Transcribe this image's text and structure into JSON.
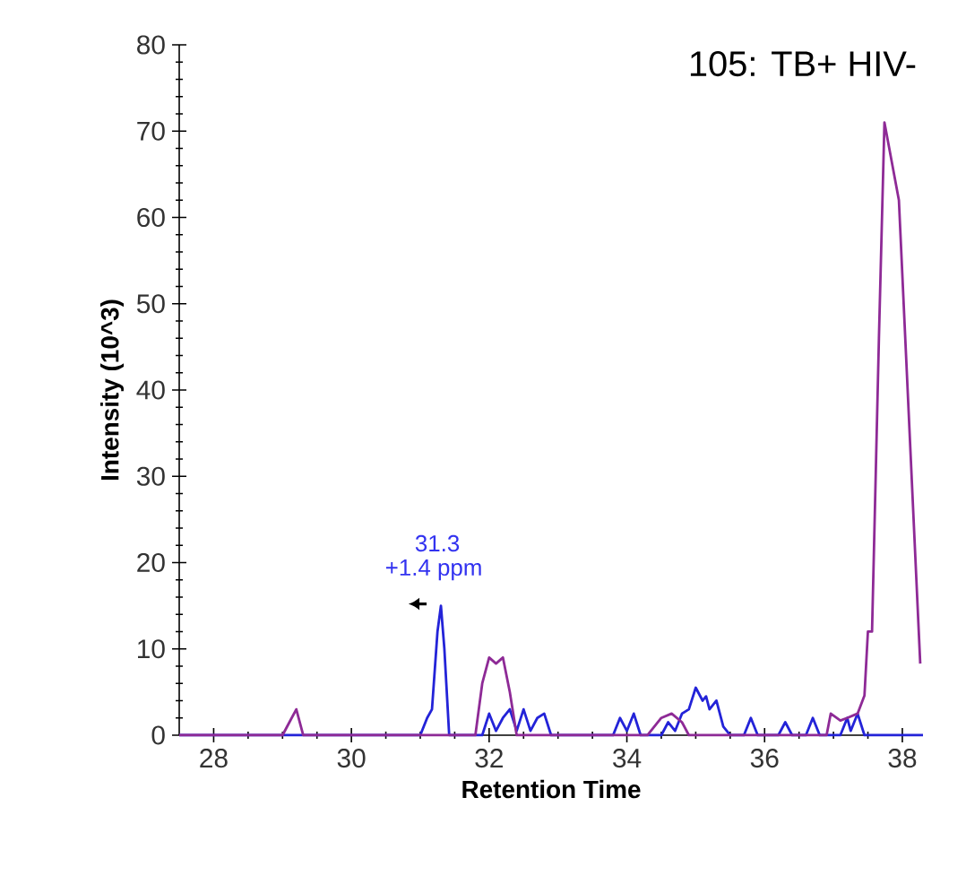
{
  "chart_data": {
    "type": "line",
    "title": "105: TB+ HIV-",
    "xlabel": "Retention Time",
    "ylabel": "Intensity (10^3)",
    "xlim": [
      27.5,
      38.3
    ],
    "ylim": [
      0,
      80
    ],
    "xticks": [
      28,
      30,
      32,
      34,
      36,
      38
    ],
    "yticks": [
      0,
      10,
      20,
      30,
      40,
      50,
      60,
      70,
      80
    ],
    "grid": false,
    "marker": "none",
    "line_style": "solid",
    "annotations": [
      {
        "text": "31.3",
        "x": 31.3,
        "y": 15
      },
      {
        "text": "+1.4 ppm",
        "x": 31.3,
        "y": 15
      }
    ],
    "series": [
      {
        "color": "#2323d8",
        "x": [
          27.5,
          31.0,
          31.1,
          31.17,
          31.25,
          31.3,
          31.35,
          31.42,
          31.9,
          32.0,
          32.1,
          32.2,
          32.3,
          32.4,
          32.5,
          32.6,
          32.7,
          32.8,
          32.9,
          33.8,
          33.9,
          34.0,
          34.1,
          34.2,
          34.5,
          34.6,
          34.7,
          34.8,
          34.9,
          35.0,
          35.1,
          35.15,
          35.2,
          35.3,
          35.4,
          35.5,
          35.7,
          35.8,
          35.9,
          36.2,
          36.3,
          36.4,
          36.6,
          36.7,
          36.8,
          37.1,
          37.2,
          37.25,
          37.35,
          37.45,
          38.3
        ],
        "values": [
          0,
          0,
          2,
          3,
          12,
          15,
          10,
          0,
          0,
          2.5,
          0.5,
          2,
          3,
          0.5,
          3,
          0.5,
          2,
          2.5,
          0,
          0,
          2,
          0.5,
          2.5,
          0,
          0,
          1.5,
          0.5,
          2.5,
          3,
          5.5,
          4,
          4.5,
          3,
          4,
          1,
          0,
          0,
          2,
          0,
          0,
          1.5,
          0,
          0,
          2,
          0,
          0,
          2,
          0.5,
          2.5,
          0,
          0
        ]
      },
      {
        "color": "#8e2a96",
        "x": [
          27.5,
          29.0,
          29.1,
          29.2,
          29.3,
          31.8,
          31.9,
          32.0,
          32.1,
          32.2,
          32.3,
          32.4,
          34.3,
          34.5,
          34.65,
          34.8,
          34.9,
          36.9,
          36.96,
          37.1,
          37.2,
          37.35,
          37.45,
          37.5,
          37.56,
          37.66,
          37.74,
          37.95,
          38.26
        ],
        "values": [
          0,
          0,
          1.5,
          3,
          0,
          0,
          6,
          9,
          8.3,
          9,
          5,
          0,
          0,
          2,
          2.5,
          1.5,
          0,
          0,
          2.5,
          1.7,
          2,
          2.5,
          4.6,
          12,
          12,
          46,
          71,
          62,
          8.3
        ]
      }
    ]
  }
}
